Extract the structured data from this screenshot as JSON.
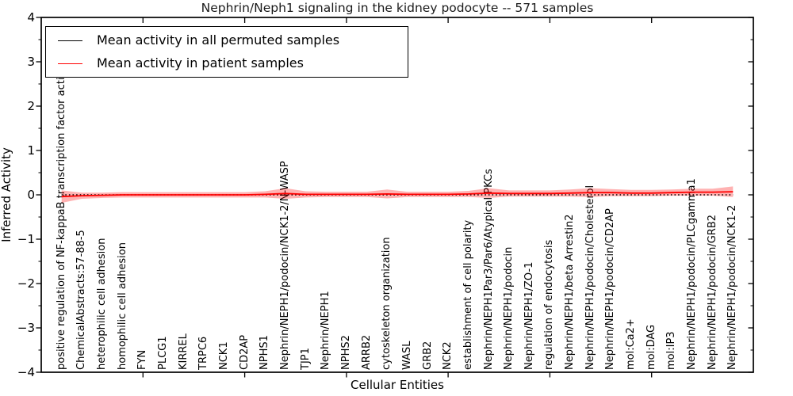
{
  "chart_data": {
    "type": "line",
    "title": "Nephrin/Neph1 signaling in the kidney podocyte -- 571 samples",
    "xlabel": "Cellular Entities",
    "ylabel": "Inferred Activity",
    "ylim": [
      -4,
      4
    ],
    "ytick_major_step": 1,
    "ytick_minor_step": 0.5,
    "x_major_tick_indices": [
      4,
      9,
      14,
      19,
      24,
      29
    ],
    "grid": false,
    "legend_position": "upper-left",
    "categories": [
      "positive regulation of NF-kappaB transcription factor activity",
      "ChemicalAbstracts:57-88-5",
      "heterophilic cell adhesion",
      "homophilic cell adhesion",
      "FYN",
      "PLCG1",
      "KIRREL",
      "TRPC6",
      "NCK1",
      "CD2AP",
      "NPHS1",
      "Nephrin/NEPH1/podocin/NCK1-2/N-WASP",
      "TJP1",
      "Nephrin/NEPH1",
      "NPHS2",
      "ARRB2",
      "cytoskeleton organization",
      "WASL",
      "GRB2",
      "NCK2",
      "establishment of cell polarity",
      "Nephrin/NEPH1Par3/Par6/Atypical PKCs",
      "Nephrin/NEPH1/podocin",
      "Nephrin/NEPH1/ZO-1",
      "regulation of endocytosis",
      "Nephrin/NEPH1/beta Arrestin2",
      "Nephrin/NEPH1/podocin/Cholesterol",
      "Nephrin/NEPH1/podocin/CD2AP",
      "mol:Ca2+",
      "mol:DAG",
      "mol:IP3",
      "Nephrin/NEPH1/podocin/PLCgamma1",
      "Nephrin/NEPH1/podocin/GRB2",
      "Nephrin/NEPH1/podocin/NCK1-2"
    ],
    "series": [
      {
        "name": "Mean activity in all permuted samples",
        "color": "#000000",
        "linestyle": "dotted",
        "values": [
          0,
          0,
          0,
          0,
          0,
          0,
          0,
          0,
          0,
          0,
          0,
          0,
          0,
          0,
          0,
          0,
          0,
          0,
          0,
          0,
          0,
          0,
          0,
          0,
          0,
          0,
          0,
          0,
          0,
          0,
          0,
          0,
          0,
          0
        ]
      },
      {
        "name": "Mean activity in patient samples",
        "color": "#ff0000",
        "linestyle": "solid",
        "values": [
          -0.04,
          -0.02,
          -0.01,
          0,
          0,
          0,
          0,
          0,
          0,
          0,
          0.01,
          0.03,
          0.01,
          0.01,
          0.01,
          0.01,
          0.02,
          0.01,
          0.01,
          0.01,
          0.02,
          0.04,
          0.03,
          0.03,
          0.03,
          0.04,
          0.05,
          0.05,
          0.04,
          0.04,
          0.05,
          0.06,
          0.06,
          0.07
        ],
        "band_halfwidth": [
          0.14,
          0.07,
          0.06,
          0.06,
          0.06,
          0.06,
          0.06,
          0.06,
          0.06,
          0.06,
          0.07,
          0.12,
          0.07,
          0.06,
          0.06,
          0.06,
          0.1,
          0.06,
          0.06,
          0.06,
          0.07,
          0.11,
          0.07,
          0.07,
          0.07,
          0.08,
          0.1,
          0.08,
          0.07,
          0.07,
          0.07,
          0.08,
          0.08,
          0.12
        ],
        "band_color": "#ff0000",
        "band_opacity": 0.3
      }
    ]
  },
  "colors": {
    "frame": "#000000",
    "background": "#ffffff",
    "text": "#000000"
  }
}
